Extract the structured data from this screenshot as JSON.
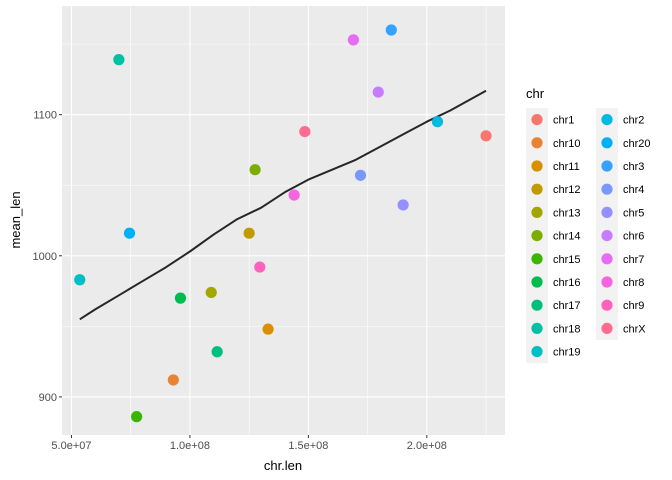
{
  "chart_data": {
    "type": "scatter",
    "xlabel": "chr.len",
    "ylabel": "mean_len",
    "xlim": [
      46000000,
      233000000
    ],
    "ylim": [
      873,
      1177
    ],
    "x_ticks": [
      {
        "value": 50000000,
        "label": "5.0e+07"
      },
      {
        "value": 100000000,
        "label": "1.0e+08"
      },
      {
        "value": 150000000,
        "label": "1.5e+08"
      },
      {
        "value": 200000000,
        "label": "2.0e+08"
      }
    ],
    "y_ticks": [
      {
        "value": 900,
        "label": "900"
      },
      {
        "value": 1000,
        "label": "1000"
      },
      {
        "value": 1100,
        "label": "1100"
      }
    ],
    "grid": true,
    "legend_title": "chr",
    "legend_position": "right",
    "legend_columns": 2,
    "series": [
      {
        "name": "chr1",
        "color": "#F8766D",
        "x": 225000000,
        "y": 1085
      },
      {
        "name": "chr10",
        "color": "#EA8331",
        "x": 93000000,
        "y": 912
      },
      {
        "name": "chr11",
        "color": "#D89000",
        "x": 133000000,
        "y": 948
      },
      {
        "name": "chr12",
        "color": "#C09B00",
        "x": 125000000,
        "y": 1016
      },
      {
        "name": "chr13",
        "color": "#A3A500",
        "x": 109000000,
        "y": 974
      },
      {
        "name": "chr14",
        "color": "#7CAE00",
        "x": 127500000,
        "y": 1061
      },
      {
        "name": "chr15",
        "color": "#39B600",
        "x": 77500000,
        "y": 886
      },
      {
        "name": "chr16",
        "color": "#00BB4E",
        "x": 96000000,
        "y": 970
      },
      {
        "name": "chr17",
        "color": "#00BF7D",
        "x": 111500000,
        "y": 932
      },
      {
        "name": "chr18",
        "color": "#00C1A3",
        "x": 70000000,
        "y": 1139
      },
      {
        "name": "chr19",
        "color": "#00BFC4",
        "x": 53500000,
        "y": 983
      },
      {
        "name": "chr2",
        "color": "#00BAE0",
        "x": 204500000,
        "y": 1095
      },
      {
        "name": "chr20",
        "color": "#00B0F6",
        "x": 74500000,
        "y": 1016
      },
      {
        "name": "chr3",
        "color": "#35A2FF",
        "x": 185000000,
        "y": 1160
      },
      {
        "name": "chr4",
        "color": "#7997FF",
        "x": 172000000,
        "y": 1057
      },
      {
        "name": "chr5",
        "color": "#9590FF",
        "x": 190000000,
        "y": 1036
      },
      {
        "name": "chr6",
        "color": "#C77CFF",
        "x": 179500000,
        "y": 1116
      },
      {
        "name": "chr7",
        "color": "#E76BF3",
        "x": 169000000,
        "y": 1153
      },
      {
        "name": "chr8",
        "color": "#F763E0",
        "x": 144000000,
        "y": 1043
      },
      {
        "name": "chr9",
        "color": "#FF62BC",
        "x": 129500000,
        "y": 992
      },
      {
        "name": "chrX",
        "color": "#FF6C91",
        "x": 148500000,
        "y": 1088
      }
    ],
    "trend_line": {
      "color": "#262626",
      "points": [
        [
          53500000,
          955
        ],
        [
          60000000,
          962
        ],
        [
          70000000,
          972
        ],
        [
          80000000,
          982
        ],
        [
          90000000,
          992
        ],
        [
          100000000,
          1003
        ],
        [
          110000000,
          1015
        ],
        [
          120000000,
          1026
        ],
        [
          130000000,
          1034
        ],
        [
          140000000,
          1045
        ],
        [
          150000000,
          1054
        ],
        [
          160000000,
          1061
        ],
        [
          170000000,
          1068
        ],
        [
          180000000,
          1077
        ],
        [
          190000000,
          1086
        ],
        [
          200000000,
          1095
        ],
        [
          210000000,
          1103
        ],
        [
          225000000,
          1117
        ]
      ]
    }
  }
}
